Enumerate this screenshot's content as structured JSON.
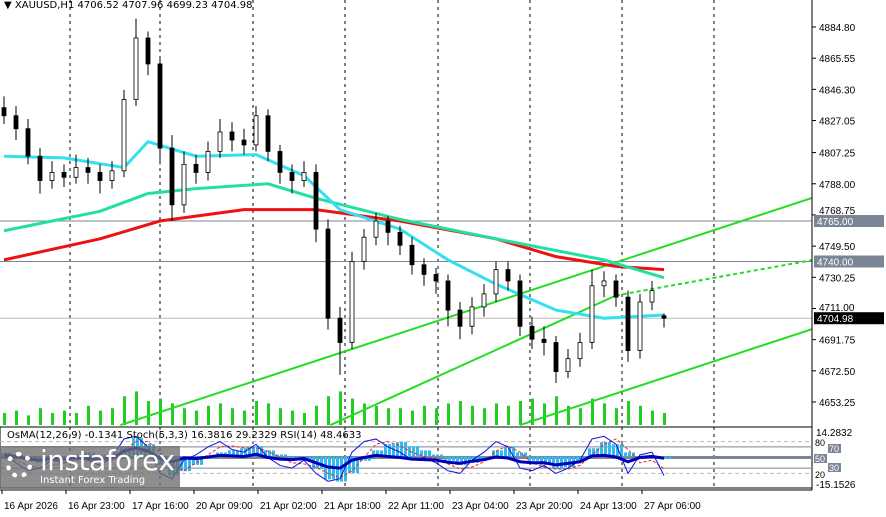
{
  "header": {
    "symbol": "XAUUSD,H1",
    "ohlc": "4706.52 4707.96 4699.23 4704.98"
  },
  "indicator_header": {
    "text": "OsMA(12,26,9) -0.1341  Stoch(5,3,3) 16.3816 29.2329  RSI(14) 48.4633"
  },
  "logo": {
    "brand": "instaforex",
    "tagline": "Instant Forex Trading"
  },
  "colors": {
    "bull": "#000000",
    "bear": "#000000",
    "ma_fast": "#33e0f0",
    "ma_mid": "#22e0a0",
    "ma_slow": "#ee1111",
    "channel": "#22dd22",
    "volume": "#22cc22",
    "osma": "#33bbee",
    "stoch_main": "#1111dd",
    "stoch_signal": "#ee2222",
    "rsi": "#0000bb",
    "level_tag": "#7a8595"
  },
  "chart_data": {
    "type": "candlestick",
    "price_axis": {
      "ticks": [
        4884.8,
        4865.55,
        4846.3,
        4827.05,
        4807.25,
        4788.0,
        4768.75,
        4749.5,
        4730.25,
        4711.0,
        4691.75,
        4672.5,
        4653.25
      ],
      "range": [
        4639,
        4902
      ]
    },
    "time_axis": {
      "labels": [
        "16 Apr 2026",
        "16 Apr 23:00",
        "17 Apr 16:00",
        "20 Apr 09:00",
        "21 Apr 02:00",
        "21 Apr 18:00",
        "22 Apr 11:00",
        "23 Apr 04:00",
        "23 Apr 20:00",
        "24 Apr 13:00",
        "27 Apr 06:00"
      ]
    },
    "candles": [
      [
        4835,
        4842,
        4825,
        4830
      ],
      [
        4830,
        4836,
        4815,
        4822
      ],
      [
        4822,
        4828,
        4800,
        4805
      ],
      [
        4805,
        4810,
        4782,
        4790
      ],
      [
        4790,
        4802,
        4785,
        4795
      ],
      [
        4795,
        4800,
        4786,
        4792
      ],
      [
        4792,
        4806,
        4788,
        4798
      ],
      [
        4798,
        4804,
        4788,
        4795
      ],
      [
        4795,
        4800,
        4782,
        4790
      ],
      [
        4790,
        4802,
        4785,
        4796
      ],
      [
        4796,
        4846,
        4792,
        4840
      ],
      [
        4840,
        4890,
        4836,
        4878
      ],
      [
        4878,
        4882,
        4855,
        4862
      ],
      [
        4862,
        4866,
        4800,
        4810
      ],
      [
        4810,
        4818,
        4765,
        4775
      ],
      [
        4775,
        4808,
        4770,
        4800
      ],
      [
        4800,
        4806,
        4788,
        4795
      ],
      [
        4795,
        4814,
        4790,
        4808
      ],
      [
        4808,
        4828,
        4804,
        4820
      ],
      [
        4820,
        4826,
        4808,
        4815
      ],
      [
        4815,
        4822,
        4806,
        4812
      ],
      [
        4812,
        4836,
        4808,
        4830
      ],
      [
        4830,
        4834,
        4802,
        4808
      ],
      [
        4808,
        4812,
        4788,
        4795
      ],
      [
        4795,
        4800,
        4782,
        4790
      ],
      [
        4790,
        4802,
        4786,
        4795
      ],
      [
        4795,
        4800,
        4752,
        4760
      ],
      [
        4760,
        4766,
        4698,
        4705
      ],
      [
        4705,
        4712,
        4670,
        4690
      ],
      [
        4690,
        4746,
        4686,
        4740
      ],
      [
        4740,
        4760,
        4735,
        4755
      ],
      [
        4755,
        4770,
        4750,
        4765
      ],
      [
        4765,
        4768,
        4750,
        4758
      ],
      [
        4758,
        4762,
        4744,
        4750
      ],
      [
        4750,
        4755,
        4732,
        4738
      ],
      [
        4738,
        4742,
        4725,
        4732
      ],
      [
        4732,
        4736,
        4720,
        4728
      ],
      [
        4728,
        4732,
        4700,
        4710
      ],
      [
        4710,
        4715,
        4692,
        4700
      ],
      [
        4700,
        4718,
        4695,
        4712
      ],
      [
        4712,
        4726,
        4706,
        4720
      ],
      [
        4720,
        4740,
        4715,
        4735
      ],
      [
        4735,
        4740,
        4722,
        4728
      ],
      [
        4728,
        4732,
        4694,
        4700
      ],
      [
        4700,
        4706,
        4686,
        4692
      ],
      [
        4692,
        4700,
        4682,
        4690
      ],
      [
        4690,
        4694,
        4665,
        4672
      ],
      [
        4672,
        4686,
        4668,
        4680
      ],
      [
        4680,
        4696,
        4675,
        4690
      ],
      [
        4690,
        4735,
        4686,
        4725
      ],
      [
        4725,
        4734,
        4718,
        4728
      ],
      [
        4728,
        4732,
        4712,
        4718
      ],
      [
        4718,
        4722,
        4678,
        4685
      ],
      [
        4685,
        4720,
        4680,
        4715
      ],
      [
        4715,
        4728,
        4710,
        4722
      ],
      [
        4706.52,
        4707.96,
        4699.23,
        4704.98
      ]
    ],
    "ma_fast": [
      [
        0,
        4805
      ],
      [
        5,
        4804
      ],
      [
        10,
        4798
      ],
      [
        12,
        4814
      ],
      [
        16,
        4805
      ],
      [
        21,
        4806
      ],
      [
        25,
        4793
      ],
      [
        28,
        4772
      ],
      [
        33,
        4760
      ],
      [
        37,
        4741
      ],
      [
        41,
        4726
      ],
      [
        46,
        4710
      ],
      [
        50,
        4705
      ],
      [
        55,
        4707
      ]
    ],
    "ma_mid": [
      [
        0,
        4759
      ],
      [
        8,
        4771
      ],
      [
        12,
        4782
      ],
      [
        16,
        4785
      ],
      [
        22,
        4788
      ],
      [
        26,
        4779
      ],
      [
        33,
        4766
      ],
      [
        41,
        4754
      ],
      [
        50,
        4741
      ],
      [
        55,
        4730
      ]
    ],
    "ma_slow": [
      [
        0,
        4741
      ],
      [
        8,
        4754
      ],
      [
        13,
        4765
      ],
      [
        20,
        4772
      ],
      [
        26,
        4772
      ],
      [
        33,
        4765
      ],
      [
        41,
        4754
      ],
      [
        46,
        4743
      ],
      [
        51,
        4737
      ],
      [
        55,
        4735
      ]
    ],
    "channel_lines": [
      {
        "from": [
          9.7,
          4639
        ],
        "to": [
          69.7,
          4785
        ],
        "style": "solid"
      },
      {
        "from": [
          27.2,
          4639
        ],
        "to": [
          51,
          4719
        ],
        "style": "solid"
      },
      {
        "from": [
          51,
          4719
        ],
        "to": [
          69.7,
          4744
        ],
        "style": "dashed"
      },
      {
        "from": [
          43,
          4639
        ],
        "to": [
          69.7,
          4704
        ],
        "style": "solid"
      }
    ],
    "horizontal_levels": [
      {
        "price": 4765.0,
        "label": "4765.00"
      },
      {
        "price": 4740.0,
        "label": "4740.00"
      }
    ],
    "last_price": {
      "price": 4704.98,
      "label": "4704.98"
    },
    "volume": [
      5,
      6,
      4,
      7,
      5,
      6,
      5,
      8,
      6,
      7,
      12,
      14,
      10,
      11,
      9,
      7,
      6,
      8,
      9,
      7,
      6,
      10,
      9,
      7,
      6,
      5,
      8,
      12,
      14,
      11,
      9,
      8,
      7,
      7,
      6,
      8,
      7,
      9,
      10,
      8,
      7,
      9,
      8,
      10,
      11,
      9,
      12,
      8,
      7,
      11,
      9,
      7,
      10,
      8,
      6,
      5
    ],
    "osma": {
      "range": [
        -15.1526,
        14.2832
      ],
      "values": [
        2,
        1,
        -1,
        -3,
        -2,
        -1,
        1,
        2,
        1,
        0,
        5,
        9,
        6,
        -4,
        -9,
        -7,
        -4,
        -1,
        2,
        3,
        4,
        5,
        3,
        1,
        -1,
        -2,
        -6,
        -11,
        -12,
        -8,
        -2,
        3,
        6,
        7,
        5,
        3,
        1,
        -2,
        -4,
        -3,
        -1,
        3,
        5,
        2,
        -2,
        -4,
        -6,
        -5,
        -2,
        4,
        7,
        6,
        2,
        -1,
        0,
        -1
      ]
    },
    "stoch_main": [
      55,
      40,
      25,
      30,
      45,
      40,
      50,
      45,
      35,
      50,
      85,
      90,
      70,
      20,
      10,
      45,
      55,
      70,
      80,
      65,
      60,
      75,
      50,
      35,
      30,
      45,
      20,
      5,
      10,
      60,
      80,
      85,
      70,
      60,
      45,
      50,
      40,
      25,
      20,
      45,
      60,
      80,
      70,
      30,
      25,
      35,
      20,
      30,
      45,
      85,
      90,
      75,
      20,
      55,
      60,
      16
    ],
    "stoch_signal": [
      50,
      45,
      35,
      30,
      35,
      40,
      45,
      45,
      42,
      45,
      65,
      80,
      80,
      60,
      35,
      25,
      40,
      55,
      70,
      72,
      68,
      68,
      62,
      50,
      40,
      38,
      32,
      20,
      12,
      25,
      50,
      75,
      80,
      72,
      60,
      52,
      48,
      38,
      28,
      32,
      42,
      62,
      72,
      60,
      40,
      32,
      28,
      28,
      35,
      55,
      75,
      85,
      65,
      40,
      45,
      29
    ],
    "rsi": [
      55,
      52,
      47,
      45,
      48,
      47,
      49,
      48,
      46,
      49,
      62,
      68,
      62,
      48,
      42,
      49,
      48,
      51,
      54,
      53,
      52,
      56,
      50,
      47,
      46,
      48,
      40,
      32,
      30,
      45,
      50,
      54,
      52,
      50,
      47,
      46,
      45,
      41,
      39,
      43,
      46,
      51,
      49,
      42,
      40,
      40,
      36,
      39,
      42,
      53,
      54,
      51,
      42,
      50,
      52,
      48.46
    ],
    "osc_levels": [
      80,
      70,
      50,
      30,
      20
    ]
  }
}
